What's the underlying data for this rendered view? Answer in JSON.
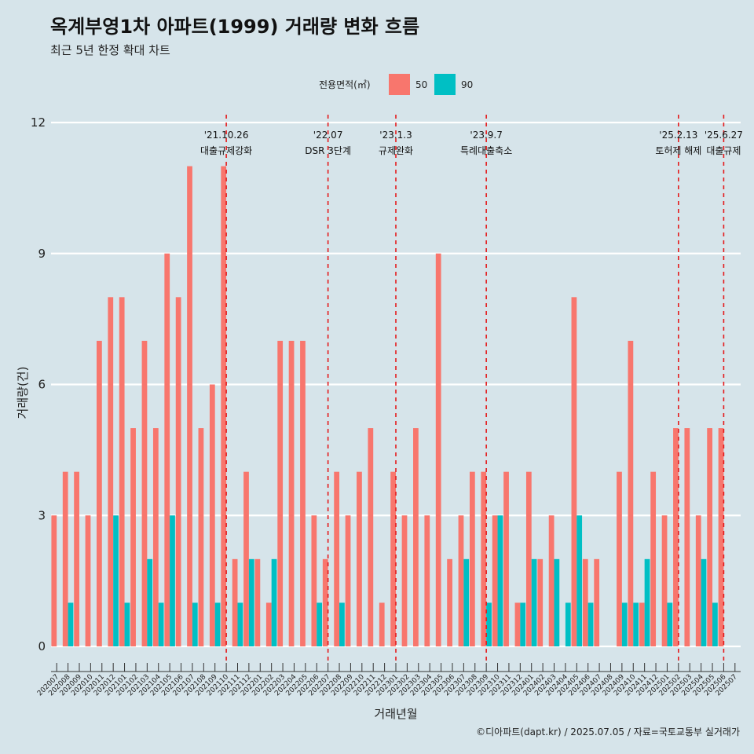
{
  "title": "옥계부영1차 아파트(1999) 거래량 변화 흐름",
  "subtitle": "최근 5년 한정 확대 차트",
  "caption": "©디아파트(dapt.kr) / 2025.07.05 / 자료=국토교통부 실거래가",
  "legend": {
    "title": "전용면적(㎡)",
    "items": [
      {
        "label": "50",
        "color": "#f8766d"
      },
      {
        "label": "90",
        "color": "#00bfc4"
      }
    ]
  },
  "chart_data": {
    "type": "bar",
    "xlabel": "거래년월",
    "ylabel": "거래량(건)",
    "ylim": [
      0,
      12
    ],
    "yticks": [
      0,
      3,
      6,
      9,
      12
    ],
    "categories": [
      "202007",
      "202008",
      "202009",
      "202010",
      "202011",
      "202012",
      "202101",
      "202102",
      "202103",
      "202104",
      "202105",
      "202106",
      "202107",
      "202108",
      "202109",
      "202110",
      "202111",
      "202112",
      "202201",
      "202202",
      "202203",
      "202204",
      "202205",
      "202206",
      "202207",
      "202208",
      "202209",
      "202210",
      "202211",
      "202212",
      "202301",
      "202302",
      "202303",
      "202304",
      "202305",
      "202306",
      "202307",
      "202308",
      "202309",
      "202310",
      "202311",
      "202312",
      "202401",
      "202402",
      "202403",
      "202404",
      "202405",
      "202406",
      "202407",
      "202408",
      "202409",
      "202410",
      "202411",
      "202412",
      "202501",
      "202502",
      "202503",
      "202504",
      "202505",
      "202506",
      "202507"
    ],
    "series": [
      {
        "name": "50",
        "color": "#f8766d",
        "values": [
          3,
          4,
          4,
          3,
          7,
          8,
          8,
          5,
          7,
          5,
          9,
          8,
          11,
          5,
          6,
          11,
          2,
          4,
          2,
          1,
          7,
          7,
          7,
          3,
          2,
          4,
          3,
          4,
          5,
          1,
          4,
          3,
          5,
          3,
          9,
          2,
          3,
          4,
          4,
          3,
          4,
          1,
          4,
          2,
          3,
          0,
          8,
          2,
          2,
          0,
          4,
          7,
          1,
          4,
          3,
          5,
          5,
          3,
          5,
          5,
          0
        ]
      },
      {
        "name": "90",
        "color": "#00bfc4",
        "values": [
          0,
          1,
          0,
          0,
          0,
          3,
          1,
          0,
          2,
          1,
          3,
          0,
          1,
          0,
          1,
          0,
          1,
          2,
          0,
          2,
          0,
          0,
          0,
          1,
          0,
          1,
          0,
          0,
          0,
          0,
          0,
          0,
          0,
          0,
          0,
          0,
          2,
          0,
          1,
          3,
          0,
          1,
          2,
          0,
          2,
          1,
          3,
          1,
          0,
          0,
          1,
          1,
          2,
          0,
          1,
          0,
          0,
          2,
          1,
          0,
          0
        ]
      }
    ],
    "events": [
      {
        "date": "'21.10.26",
        "name": "대출규제강화",
        "category": "202110"
      },
      {
        "date": "'22.07",
        "name": "DSR 3단계",
        "category": "202207"
      },
      {
        "date": "'23.1.3",
        "name": "규제완화",
        "category": "202301"
      },
      {
        "date": "'23.9.7",
        "name": "특례대출축소",
        "category": "202309"
      },
      {
        "date": "'25.2.13",
        "name": "토허제 해제",
        "category": "202502"
      },
      {
        "date": "'25.6.27",
        "name": "대출규제",
        "category": "202506"
      }
    ],
    "grid": true,
    "legend_position": "top"
  }
}
